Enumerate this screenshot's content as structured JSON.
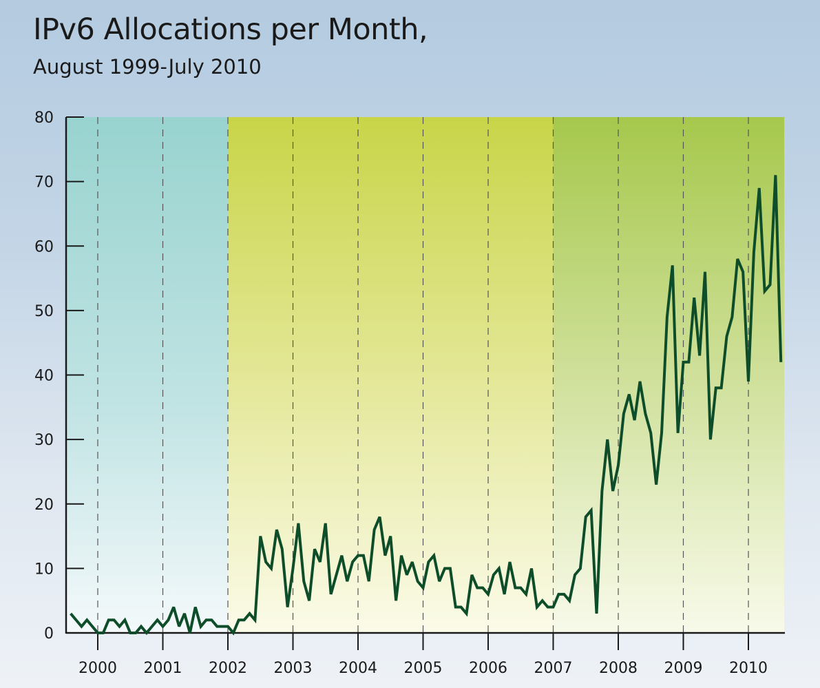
{
  "chart_data": {
    "type": "line",
    "title": "IPv6 Allocations per Month,",
    "subtitle": "August 1999-July 2010",
    "xlabel": "",
    "ylabel": "",
    "ylim": [
      0,
      80
    ],
    "yticks": [
      0,
      10,
      20,
      30,
      40,
      50,
      60,
      70,
      80
    ],
    "ytick_labels": [
      "0",
      "10",
      "20",
      "30",
      "40",
      "50",
      "60",
      "70",
      "80"
    ],
    "xticks": [
      "2000",
      "2001",
      "2002",
      "2003",
      "2004",
      "2005",
      "2006",
      "2007",
      "2008",
      "2009",
      "2010"
    ],
    "x_start": "1999-08",
    "x_end": "2010-07",
    "grid": "vertical dashed at each year",
    "legend": "none",
    "bands": [
      {
        "from": "1999-08",
        "to": "2002-01",
        "color": "#9ad4d0"
      },
      {
        "from": "2002-01",
        "to": "2007-01",
        "color": "#c8d54a"
      },
      {
        "from": "2007-01",
        "to": "2010-07",
        "color": "#a8c94e"
      }
    ],
    "line_color": "#0e4d2a",
    "series": [
      {
        "name": "IPv6 allocations",
        "values": [
          3,
          2,
          1,
          2,
          1,
          0,
          0,
          2,
          2,
          1,
          2,
          0,
          0,
          1,
          0,
          1,
          2,
          1,
          2,
          4,
          1,
          3,
          0,
          4,
          1,
          2,
          2,
          1,
          1,
          1,
          0,
          2,
          2,
          3,
          2,
          15,
          11,
          10,
          16,
          13,
          4,
          10,
          17,
          8,
          5,
          13,
          11,
          17,
          6,
          9,
          12,
          8,
          11,
          12,
          12,
          8,
          16,
          18,
          12,
          15,
          5,
          12,
          9,
          11,
          8,
          7,
          11,
          12,
          8,
          10,
          10,
          4,
          4,
          3,
          9,
          7,
          7,
          6,
          9,
          10,
          6,
          11,
          7,
          7,
          6,
          10,
          4,
          5,
          4,
          4,
          6,
          6,
          5,
          9,
          10,
          18,
          19,
          3,
          22,
          30,
          22,
          26,
          34,
          37,
          33,
          39,
          34,
          31,
          23,
          31,
          49,
          57,
          31,
          42,
          42,
          52,
          43,
          56,
          30,
          38,
          38,
          46,
          49,
          58,
          56,
          39,
          59,
          69,
          53,
          54,
          71,
          42
        ]
      }
    ]
  }
}
